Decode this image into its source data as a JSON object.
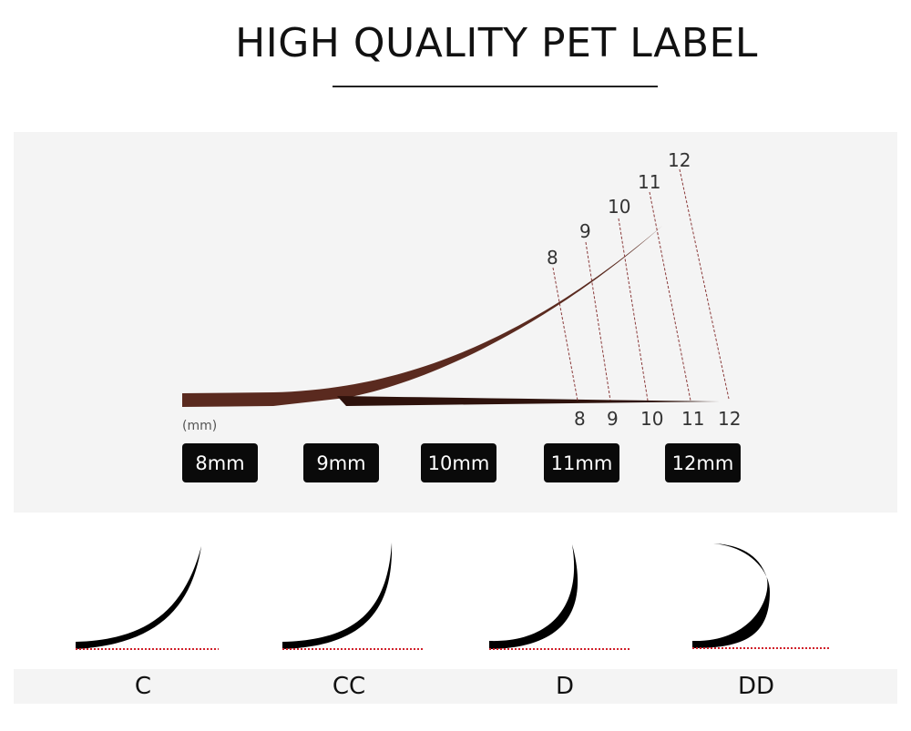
{
  "title": "HIGH QUALITY PET LABEL",
  "diagram": {
    "unit_label": "(mm)",
    "top_lengths": [
      "8",
      "9",
      "10",
      "11",
      "12"
    ],
    "bottom_lengths": [
      "8",
      "9",
      "10",
      "11",
      "12"
    ],
    "length_pills": [
      "8mm",
      "9mm",
      "10mm",
      "11mm",
      "12mm"
    ],
    "lash_color": "#5a2a1f"
  },
  "curls": [
    "C",
    "CC",
    "D",
    "DD"
  ],
  "baseline_color": "#d0202a"
}
